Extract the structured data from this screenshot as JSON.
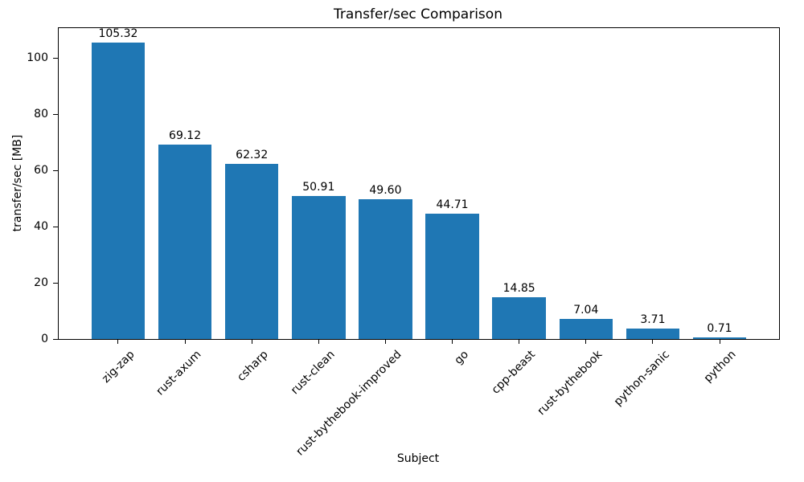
{
  "chart_data": {
    "type": "bar",
    "title": "Transfer/sec Comparison",
    "xlabel": "Subject",
    "ylabel": "transfer/sec [MB]",
    "categories": [
      "zig-zap",
      "rust-axum",
      "csharp",
      "rust-clean",
      "rust-bythebook-improved",
      "go",
      "cpp-beast",
      "rust-bythebook",
      "python-sanic",
      "python"
    ],
    "values": [
      105.32,
      69.12,
      62.32,
      50.91,
      49.6,
      44.71,
      14.85,
      7.04,
      3.71,
      0.71
    ],
    "value_label_format": "2-decimals",
    "yticks": [
      0,
      20,
      40,
      60,
      80,
      100
    ],
    "ylim": [
      0,
      110.6
    ],
    "bar_color": "#1f77b4",
    "grid": false,
    "legend_position": "none",
    "x_tick_rotation_deg": 45
  }
}
